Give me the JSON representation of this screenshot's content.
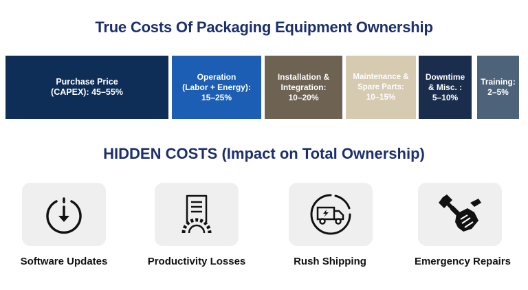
{
  "title": "True Costs Of Packaging Equipment Ownership",
  "segments": [
    {
      "label": "Purchase Price\n(CAPEX): 45–55%",
      "color": "#0e2e57",
      "text_color": "#ffffff"
    },
    {
      "label": "Operation\n(Labor + Energy):\n15–25%",
      "color": "#1d5eb5",
      "text_color": "#ffffff"
    },
    {
      "label": "Installation &\nIntegration:\n10–20%",
      "color": "#6e6253",
      "text_color": "#ffffff"
    },
    {
      "label": "Maintenance &\nSpare Parts:\n10–15%",
      "color": "#d6cab0",
      "text_color": "#ffffff"
    },
    {
      "label": "Downtime\n& Misc. :\n5–10%",
      "color": "#1a2d4d",
      "text_color": "#ffffff"
    },
    {
      "label": "Training:\n2–5%",
      "color": "#4d6379",
      "text_color": "#ffffff"
    }
  ],
  "hidden_title": "HIDDEN COSTS (Impact on Total Ownership)",
  "hidden_costs": [
    {
      "label": "Software Updates",
      "icon": "download-circle-icon"
    },
    {
      "label": "Productivity Losses",
      "icon": "document-gear-icon"
    },
    {
      "label": "Rush Shipping",
      "icon": "delivery-truck-icon"
    },
    {
      "label": "Emergency Repairs",
      "icon": "wrench-hand-icon"
    }
  ]
}
